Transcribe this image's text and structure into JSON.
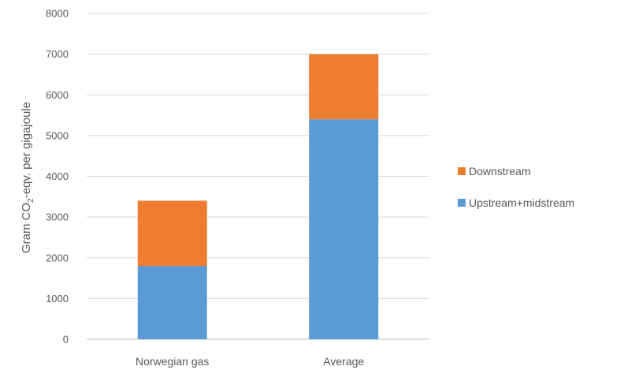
{
  "chart_data": {
    "type": "bar",
    "stacked": true,
    "categories": [
      "Norwegian gas",
      "Average"
    ],
    "series": [
      {
        "name": "Upstream+midstream",
        "values": [
          1800,
          5400
        ],
        "color": "#5b9bd5"
      },
      {
        "name": "Downstream",
        "values": [
          1600,
          1600
        ],
        "color": "#ed7d31"
      }
    ],
    "ylabel": {
      "pre": "Gram CO",
      "sub": "2",
      "post": "-eqv. per gigajoule"
    },
    "xlabel": "",
    "title": "",
    "ylim": [
      0,
      8000
    ],
    "yticks": [
      "0",
      "1000",
      "2000",
      "3000",
      "4000",
      "5000",
      "6000",
      "7000",
      "8000"
    ],
    "grid": true,
    "legend_position": "right",
    "legend_order": [
      "Downstream",
      "Upstream+midstream"
    ]
  }
}
